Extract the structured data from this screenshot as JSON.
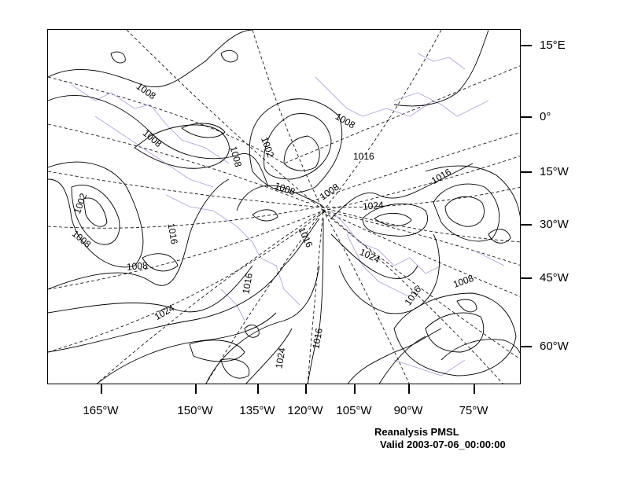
{
  "colors": {
    "contour": "#000000",
    "coastline": "#b7a3d6",
    "graticule": "#000000",
    "background": "#ffffff"
  },
  "latitude_labels": [
    "15°E",
    "0°",
    "15°W",
    "30°W",
    "45°W",
    "60°W"
  ],
  "longitude_labels": [
    "165°W",
    "150°W",
    "135°W",
    "120°W",
    "105°W",
    "90°W",
    "75°W"
  ],
  "contour_labels": [
    "1008",
    "1008",
    "1008",
    "1008",
    "1002",
    "1008",
    "1016",
    "1008",
    "1016",
    "1002",
    "1008",
    "1016",
    "1008",
    "1024",
    "1016",
    "1024",
    "1016",
    "1008",
    "1016",
    "1024",
    "1016",
    "1024"
  ],
  "caption": {
    "line1": "Reanalysis PMSL",
    "line2": "Valid 2003-07-06_00:00:00"
  }
}
